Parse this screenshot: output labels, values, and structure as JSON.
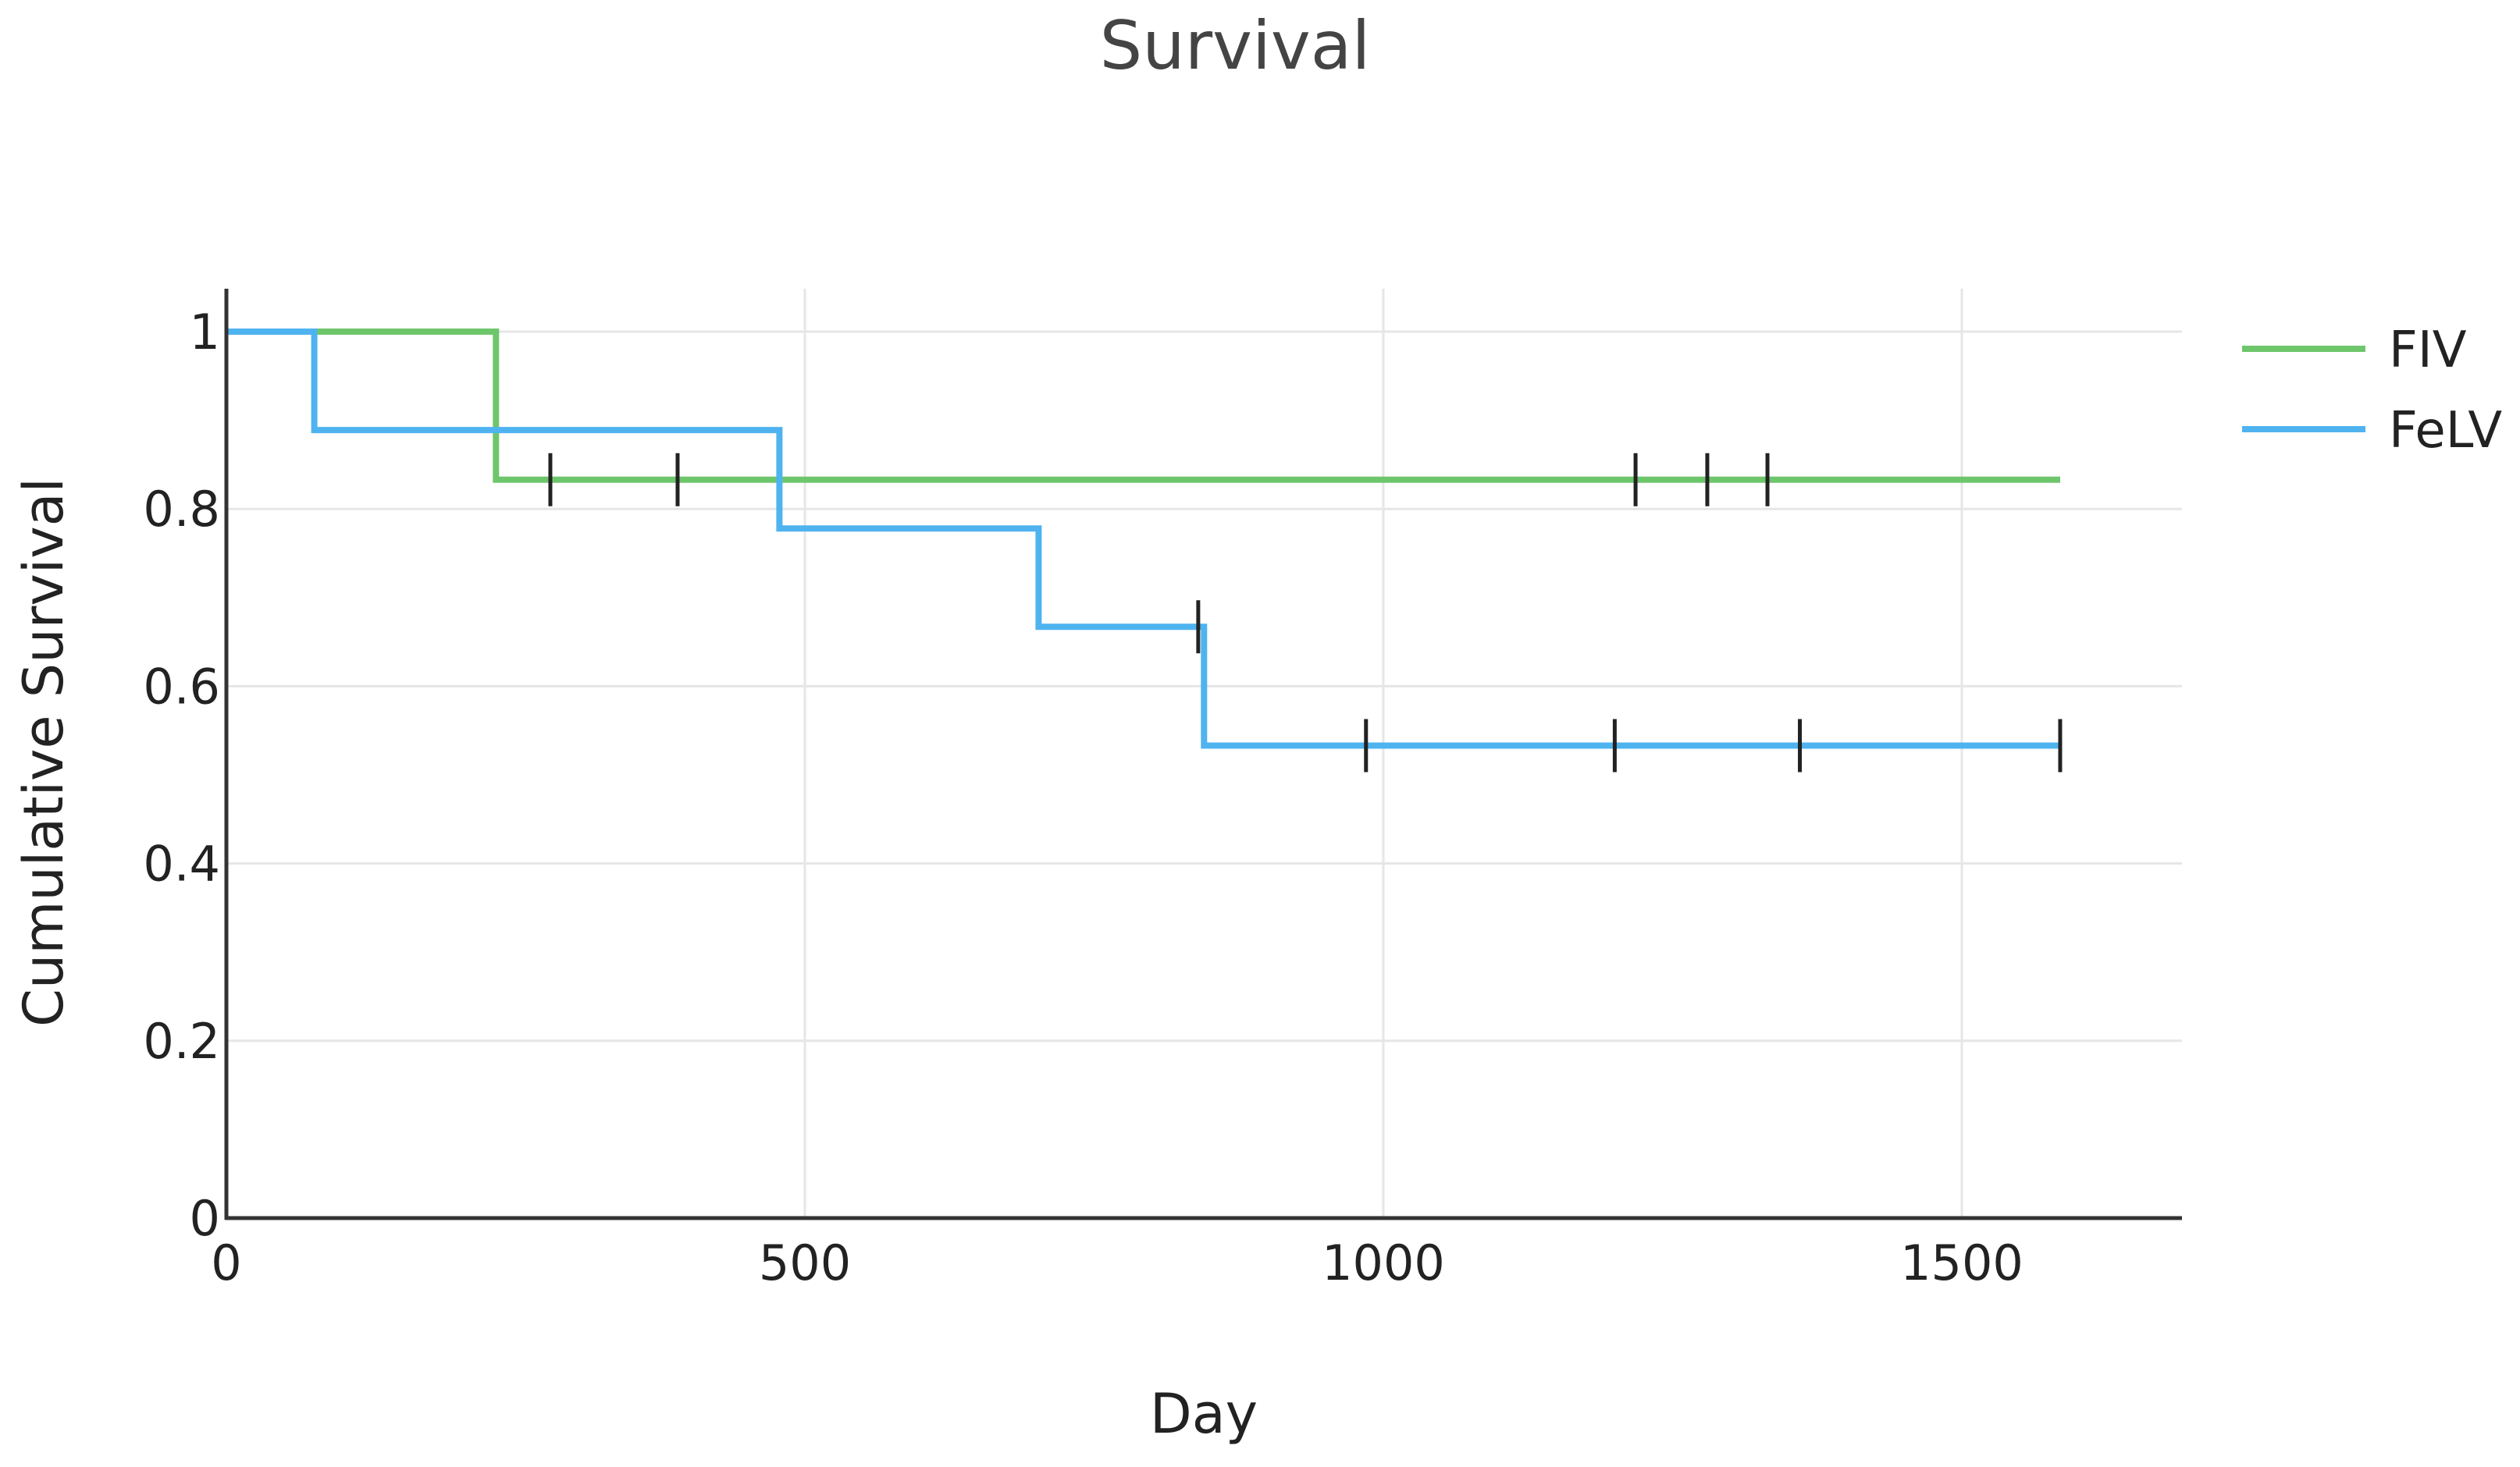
{
  "chart_data": {
    "type": "line",
    "title": "Survival",
    "xlabel": "Day",
    "ylabel": "Cumulative Survival",
    "xlim": [
      0,
      1690
    ],
    "ylim": [
      0,
      1.05
    ],
    "x_ticks": [
      0,
      500,
      1000,
      1500
    ],
    "x_tick_labels": [
      "0",
      "500",
      "1000",
      "1500"
    ],
    "y_ticks": [
      0,
      0.2,
      0.4,
      0.6,
      0.8,
      1
    ],
    "y_tick_labels": [
      "0",
      "0.2",
      "0.4",
      "0.6",
      "0.8",
      "1"
    ],
    "grid": true,
    "legend_position": "top-right",
    "series": [
      {
        "name": "FIV",
        "color": "#6ec66b",
        "x": [
          0,
          233,
          233,
          1585
        ],
        "y": [
          1,
          1,
          0.833,
          0.833
        ],
        "censored": [
          {
            "x": 280,
            "y": 0.833
          },
          {
            "x": 390,
            "y": 0.833
          },
          {
            "x": 1218,
            "y": 0.833
          },
          {
            "x": 1280,
            "y": 0.833
          },
          {
            "x": 1332,
            "y": 0.833
          }
        ]
      },
      {
        "name": "FeLV",
        "color": "#4fb3f0",
        "x": [
          0,
          76,
          76,
          478,
          478,
          702,
          702,
          845,
          845,
          1585
        ],
        "y": [
          1,
          1,
          0.889,
          0.889,
          0.778,
          0.778,
          0.667,
          0.667,
          0.533,
          0.533
        ],
        "censored": [
          {
            "x": 840,
            "y": 0.667
          },
          {
            "x": 985,
            "y": 0.533
          },
          {
            "x": 1200,
            "y": 0.533
          },
          {
            "x": 1360,
            "y": 0.533
          },
          {
            "x": 1585,
            "y": 0.533
          }
        ]
      }
    ]
  }
}
